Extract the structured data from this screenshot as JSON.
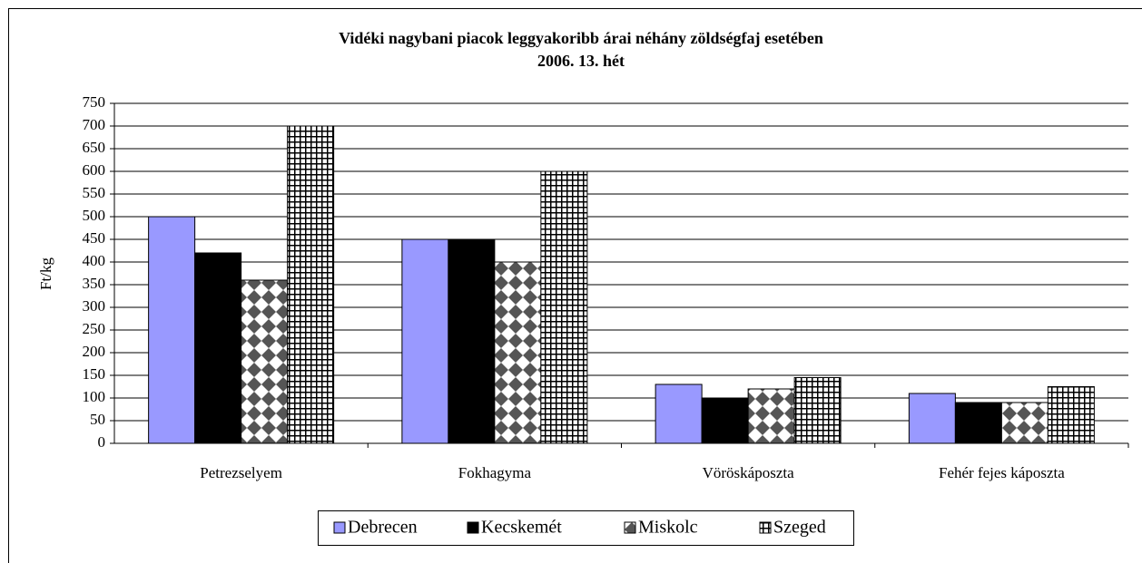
{
  "chart_data": {
    "type": "bar",
    "title": "Vidéki nagybani piacok leggyakoribb árai néhány zöldségfaj esetében",
    "subtitle": "2006. 13. hét",
    "y_label": "Ft/kg",
    "categories": [
      "Petrezselyem",
      "Fokhagyma",
      "Vöröskáposzta",
      "Fehér fejes káposzta"
    ],
    "series": [
      {
        "name": "Debrecen",
        "color": "#9999ff",
        "pattern": "solid",
        "values": [
          500,
          450,
          130,
          110
        ]
      },
      {
        "name": "Kecskemét",
        "color": "#000000",
        "pattern": "solid",
        "values": [
          420,
          450,
          100,
          90
        ]
      },
      {
        "name": "Miskolc",
        "color": "#555555",
        "pattern": "diamond",
        "values": [
          360,
          400,
          120,
          90
        ]
      },
      {
        "name": "Szeged",
        "color": "#000000",
        "pattern": "grid",
        "values": [
          700,
          600,
          145,
          125
        ]
      }
    ],
    "ylim": [
      0,
      750
    ],
    "yticks": [
      0,
      50,
      100,
      150,
      200,
      250,
      300,
      350,
      400,
      450,
      500,
      550,
      600,
      650,
      700,
      750
    ],
    "grid": true,
    "legend": "bottom"
  }
}
